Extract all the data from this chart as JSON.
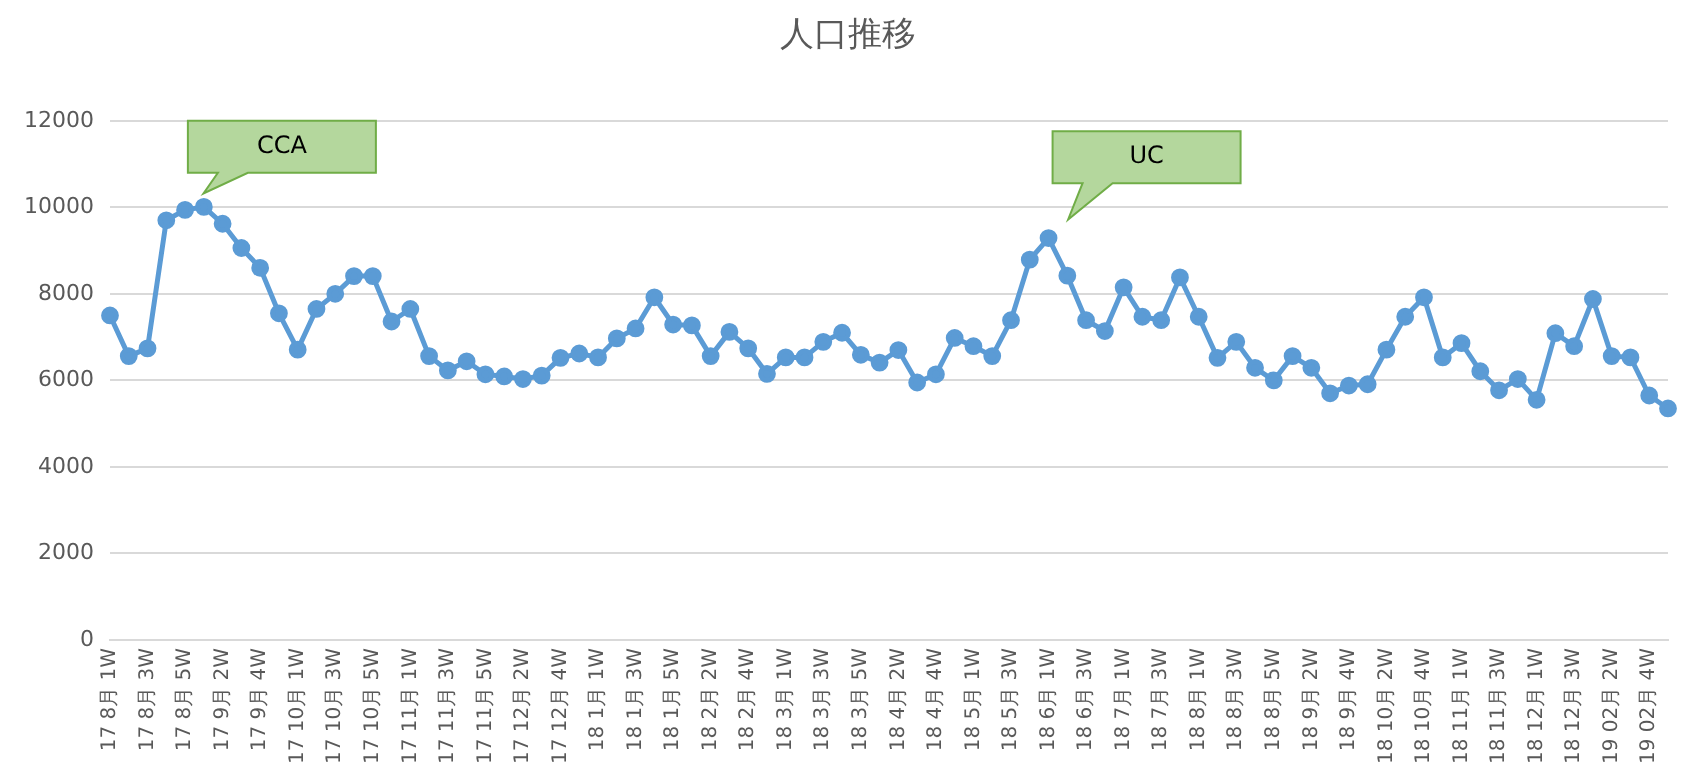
{
  "chart_data": {
    "type": "line",
    "title": "人口推移",
    "categories": [
      "17 8月 1W",
      null,
      "17 8月 3W",
      null,
      "17 8月 5W",
      null,
      "17 9月 2W",
      null,
      "17 9月 4W",
      null,
      "17 10月 1W",
      null,
      "17 10月 3W",
      null,
      "17 10月 5W",
      null,
      "17 11月 1W",
      null,
      "17 11月 3W",
      null,
      "17 11月 5W",
      null,
      "17 12月 2W",
      null,
      "17 12月 4W",
      null,
      "18 1月 1W",
      null,
      "18 1月 3W",
      null,
      "18 1月 5W",
      null,
      "18 2月 2W",
      null,
      "18 2月 4W",
      null,
      "18 3月 1W",
      null,
      "18 3月 3W",
      null,
      "18 3月 5W",
      null,
      "18 4月 2W",
      null,
      "18 4月 4W",
      null,
      "18 5月 1W",
      null,
      "18 5月 3W",
      null,
      "18 6月 1W",
      null,
      "18 6月 3W",
      null,
      "18 7月 1W",
      null,
      "18 7月 3W",
      null,
      "18 8月 1W",
      null,
      "18 8月 3W",
      null,
      "18 8月 5W",
      null,
      "18 9月 2W",
      null,
      "18 9月 4W",
      null,
      "18 10月 2W",
      null,
      "18 10月 4W",
      null,
      "18 11月 1W",
      null,
      "18 11月 3W",
      null,
      "18 12月 1W",
      null,
      "18 12月 3W",
      null,
      "19 02月 2W",
      null,
      "19 02月 4W",
      null
    ],
    "series": [
      {
        "color": "#5b9bd5",
        "values": [
          7500,
          6560,
          6740,
          9700,
          9940,
          10010,
          9620,
          9060,
          8600,
          7550,
          6710,
          7650,
          8000,
          8410,
          8410,
          7360,
          7650,
          6560,
          6230,
          6440,
          6140,
          6090,
          6030,
          6110,
          6520,
          6620,
          6530,
          6970,
          7200,
          7920,
          7290,
          7270,
          6560,
          7120,
          6740,
          6150,
          6530,
          6530,
          6890,
          7100,
          6590,
          6410,
          6700,
          5950,
          6140,
          6980,
          6790,
          6560,
          7390,
          8790,
          9290,
          8420,
          7390,
          7140,
          8150,
          7470,
          7390,
          8380,
          7470,
          6520,
          6890,
          6290,
          6000,
          6560,
          6290,
          5700,
          5880,
          5910,
          6710,
          7470,
          7920,
          6530,
          6860,
          6210,
          5770,
          6030,
          5550,
          7090,
          6790,
          7880,
          6560,
          6530,
          5650,
          5350
        ]
      }
    ],
    "ylim": [
      0,
      12000
    ],
    "yticks": [
      0,
      2000,
      4000,
      6000,
      8000,
      10000,
      12000
    ],
    "grid": "y",
    "legend": false,
    "marker": "circle",
    "line_style": "solid",
    "annotations": [
      "CCA",
      "UC"
    ]
  }
}
